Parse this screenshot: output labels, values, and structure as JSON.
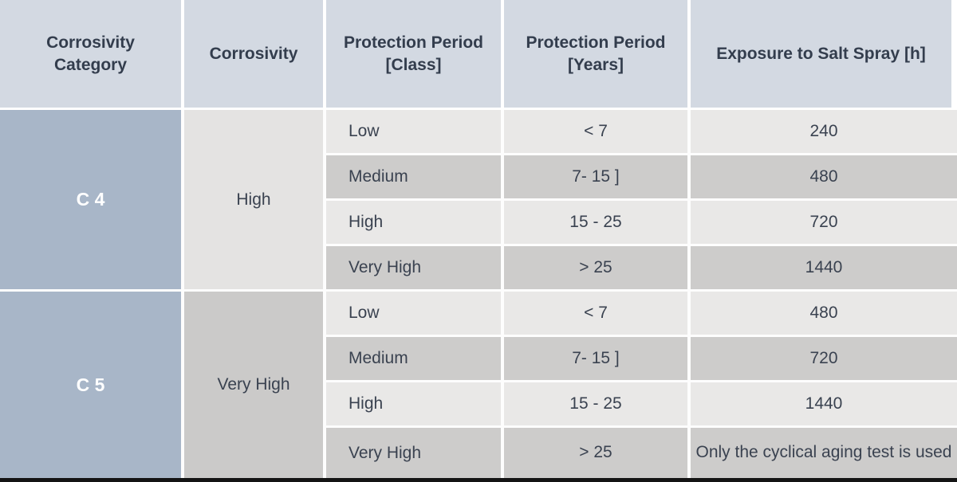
{
  "table": {
    "headers": {
      "category": "Corrosivity Category",
      "corrosivity": "Corrosivity",
      "protection_class": "Protection Period [Class]",
      "protection_years": "Protection Period [Years]",
      "salt_spray": "Exposure to Salt Spray [h]"
    },
    "groups": [
      {
        "category": "C 4",
        "corrosivity": "High",
        "rows": [
          {
            "class": "Low",
            "years": "< 7",
            "salt_spray": "240"
          },
          {
            "class": "Medium",
            "years": "7- 15 ]",
            "salt_spray": "480"
          },
          {
            "class": "High",
            "years": "15 - 25",
            "salt_spray": "720"
          },
          {
            "class": "Very High",
            "years": "> 25",
            "salt_spray": "1440"
          }
        ]
      },
      {
        "category": "C 5",
        "corrosivity": "Very High",
        "rows": [
          {
            "class": "Low",
            "years": "< 7",
            "salt_spray": "480"
          },
          {
            "class": "Medium",
            "years": "7- 15 ]",
            "salt_spray": "720"
          },
          {
            "class": "High",
            "years": "15 - 25",
            "salt_spray": "1440"
          },
          {
            "class": "Very High",
            "years": "> 25",
            "salt_spray": "Only the cyclical aging test is used"
          }
        ]
      }
    ]
  },
  "colors": {
    "header_bg": "#d3d9e2",
    "category_bg": "#a8b6c8",
    "row_light": "#e9e8e7",
    "row_dark": "#cdcccb",
    "text_dark": "#3a4250",
    "category_text": "#ffffff",
    "bottom_bar": "#141414"
  }
}
